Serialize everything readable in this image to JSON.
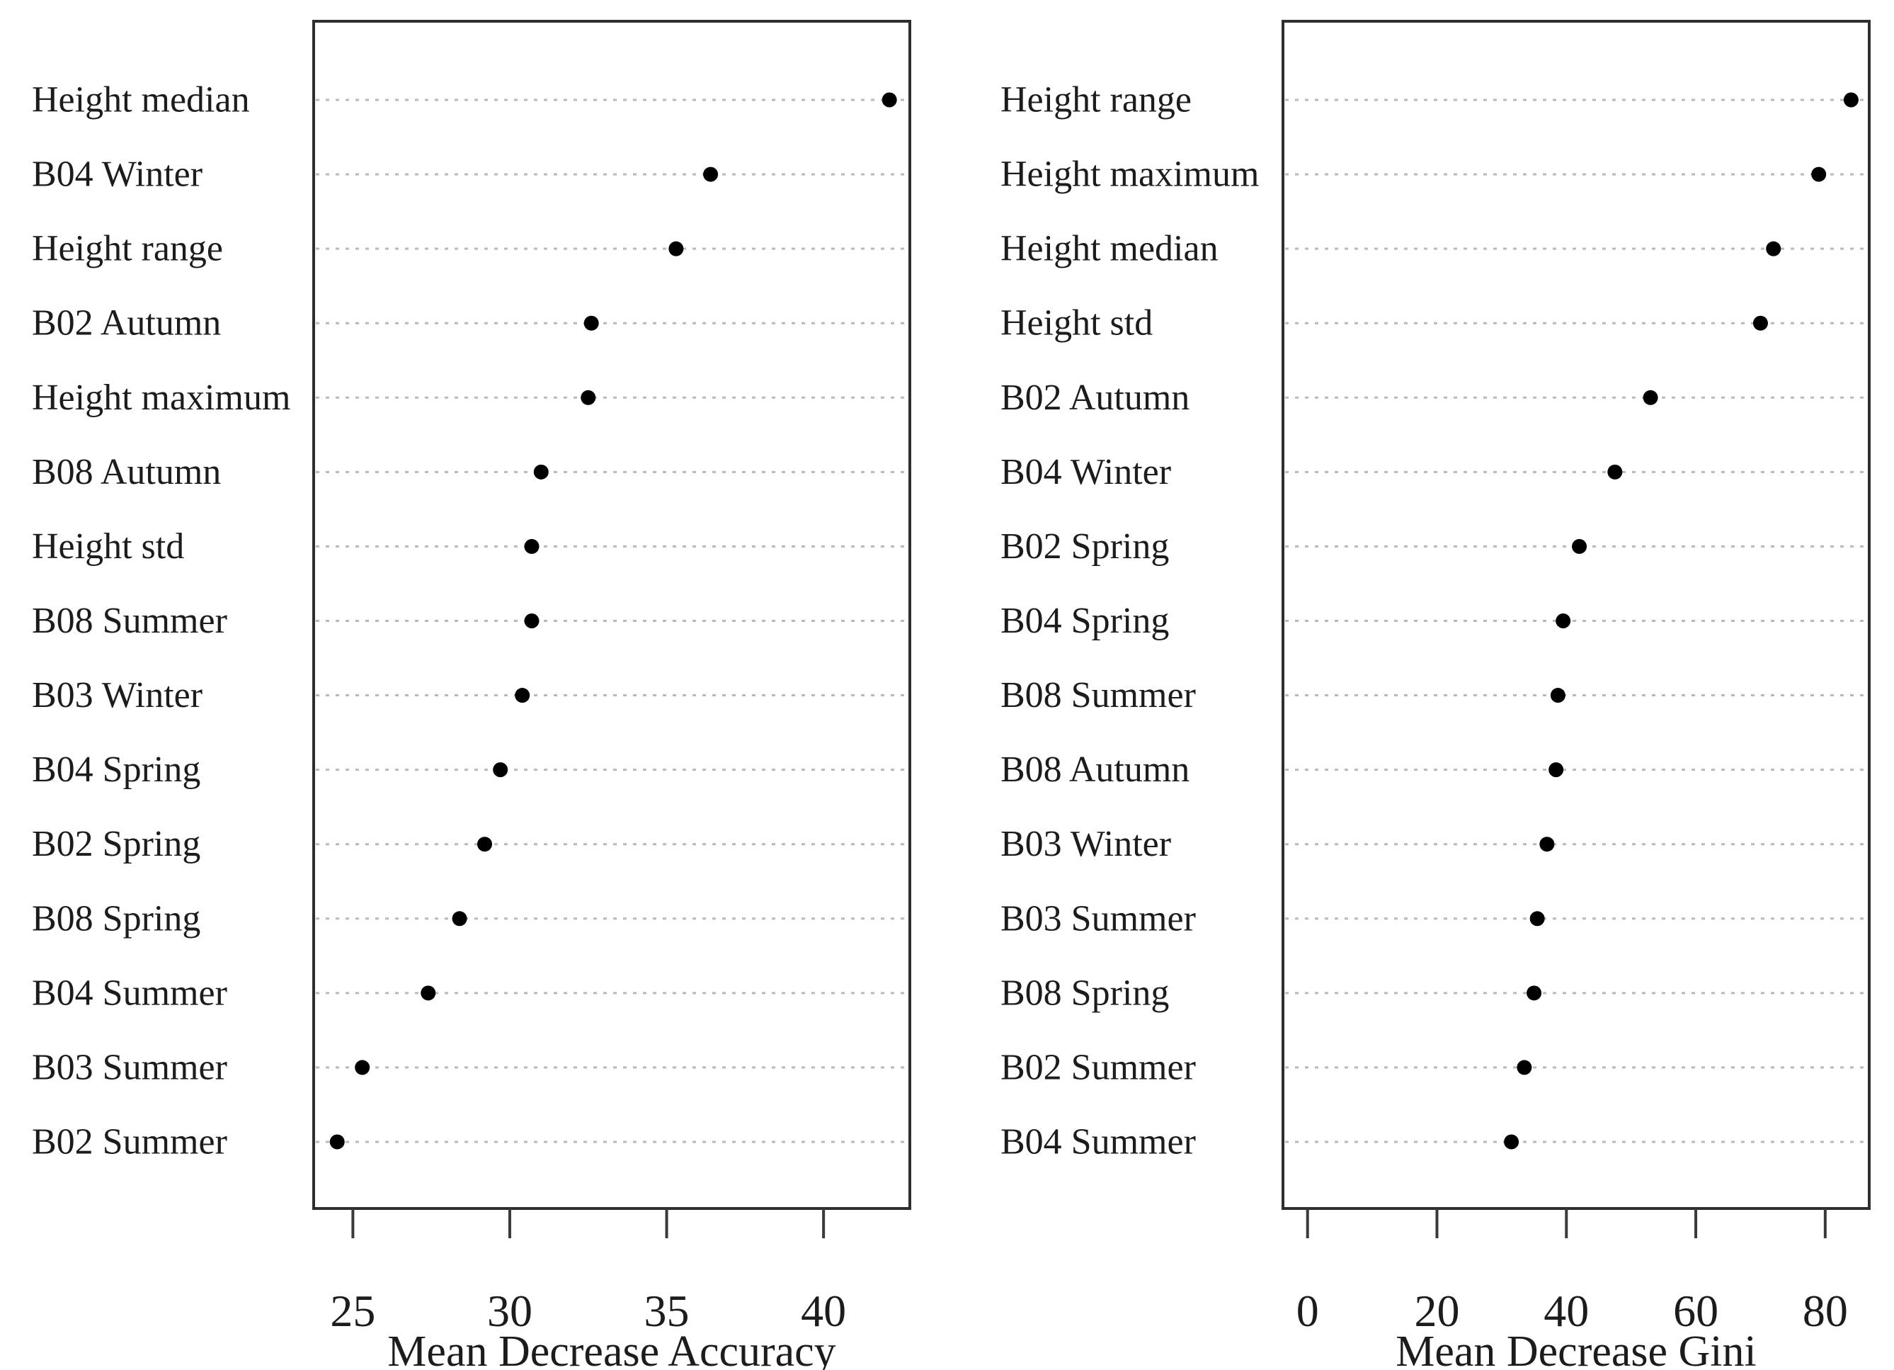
{
  "figure": {
    "description": "Random forest variable importance dot plots",
    "colors": {
      "dot": "#000000",
      "grid": "#b9b9b9",
      "border": "#2e2e2e",
      "tick": "#3a3a3a",
      "text": "#1c1c1c",
      "background": "#ffffff"
    }
  },
  "chart_data": [
    {
      "type": "scatter",
      "variant": "dot-plot",
      "title": "",
      "xlabel": "Mean Decrease Accuracy",
      "ylabel": "",
      "legend": "none",
      "grid": "dotted-horizontal",
      "xticks": [
        25,
        30,
        35,
        40
      ],
      "xlim": [
        23.75,
        42.75
      ],
      "categories": [
        "Height median",
        "B04 Winter",
        "Height range",
        "B02 Autumn",
        "Height maximum",
        "B08 Autumn",
        "Height std",
        "B08 Summer",
        "B03 Winter",
        "B04 Spring",
        "B02 Spring",
        "B08 Spring",
        "B04 Summer",
        "B03 Summer",
        "B02 Summer"
      ],
      "values": [
        42.1,
        36.4,
        35.3,
        32.6,
        32.5,
        31.0,
        30.7,
        30.7,
        30.4,
        29.7,
        29.2,
        28.4,
        27.4,
        25.3,
        24.5
      ]
    },
    {
      "type": "scatter",
      "variant": "dot-plot",
      "title": "",
      "xlabel": "Mean Decrease Gini",
      "ylabel": "",
      "legend": "none",
      "grid": "dotted-horizontal",
      "xticks": [
        0,
        20,
        40,
        60,
        80
      ],
      "xlim": [
        -3.8,
        86.8
      ],
      "categories": [
        "Height range",
        "Height maximum",
        "Height median",
        "Height std",
        "B02 Autumn",
        "B04 Winter",
        "B02 Spring",
        "B04 Spring",
        "B08 Summer",
        "B08 Autumn",
        "B03 Winter",
        "B03 Summer",
        "B08 Spring",
        "B02 Summer",
        "B04 Summer"
      ],
      "values": [
        84.0,
        79.0,
        72.0,
        70.0,
        53.0,
        47.5,
        42.0,
        39.5,
        38.7,
        38.4,
        37.0,
        35.5,
        35.0,
        33.5,
        31.5
      ]
    }
  ]
}
